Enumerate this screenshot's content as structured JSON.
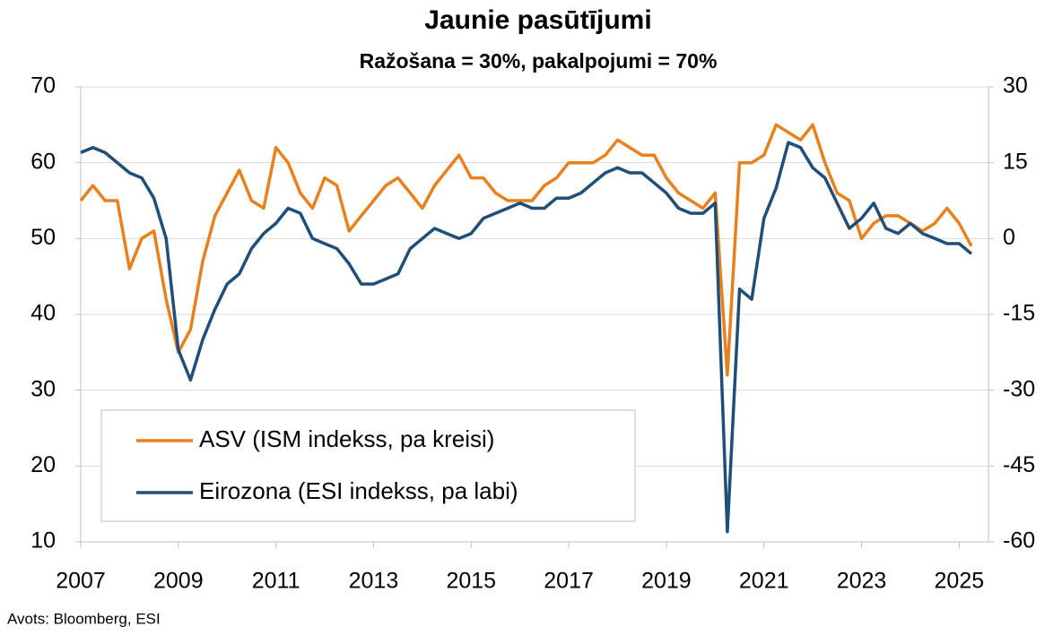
{
  "chart_data": {
    "type": "line",
    "title": "Jaunie pasūtījumi",
    "subtitle": "Ražošana = 30%, pakalpojumi = 70%",
    "source": "Avots: Bloomberg, ESI",
    "x": [
      2007,
      2007.25,
      2007.5,
      2007.75,
      2008,
      2008.25,
      2008.5,
      2008.75,
      2009,
      2009.25,
      2009.5,
      2009.75,
      2010,
      2010.25,
      2010.5,
      2010.75,
      2011,
      2011.25,
      2011.5,
      2011.75,
      2012,
      2012.25,
      2012.5,
      2012.75,
      2013,
      2013.25,
      2013.5,
      2013.75,
      2014,
      2014.25,
      2014.5,
      2014.75,
      2015,
      2015.25,
      2015.5,
      2015.75,
      2016,
      2016.25,
      2016.5,
      2016.75,
      2017,
      2017.25,
      2017.5,
      2017.75,
      2018,
      2018.25,
      2018.5,
      2018.75,
      2019,
      2019.25,
      2019.5,
      2019.75,
      2020,
      2020.25,
      2020.5,
      2020.75,
      2021,
      2021.25,
      2021.5,
      2021.75,
      2022,
      2022.25,
      2022.5,
      2022.75,
      2023,
      2023.25,
      2023.5,
      2023.75,
      2024,
      2024.25,
      2024.5,
      2024.75,
      2025,
      2025.25
    ],
    "series": [
      {
        "name": "ASV (ISM indekss, pa kreisi)",
        "color": "#e8801e",
        "axis": "y",
        "values": [
          55,
          57,
          55,
          55,
          46,
          50,
          51,
          42,
          35,
          38,
          47,
          53,
          56,
          59,
          55,
          54,
          62,
          60,
          56,
          54,
          58,
          57,
          51,
          53,
          55,
          57,
          58,
          56,
          54,
          57,
          59,
          61,
          58,
          58,
          56,
          55,
          55,
          55,
          57,
          58,
          60,
          60,
          60,
          61,
          63,
          62,
          61,
          61,
          58,
          56,
          55,
          54,
          56,
          32,
          60,
          60,
          61,
          65,
          64,
          63,
          65,
          60,
          56,
          55,
          50,
          52,
          53,
          53,
          52,
          51,
          52,
          54,
          52,
          49
        ]
      },
      {
        "name": "Eirozona (ESI indekss, pa labi)",
        "color": "#1f4e79",
        "axis": "y2",
        "values": [
          17,
          18,
          17,
          15,
          13,
          12,
          8,
          0,
          -22,
          -28,
          -20,
          -14,
          -9,
          -7,
          -2,
          1,
          3,
          6,
          5,
          0,
          -1,
          -2,
          -5,
          -9,
          -9,
          -8,
          -7,
          -2,
          0,
          2,
          1,
          0,
          1,
          4,
          5,
          6,
          7,
          6,
          6,
          8,
          8,
          9,
          11,
          13,
          14,
          13,
          13,
          11,
          9,
          6,
          5,
          5,
          7,
          -58,
          -10,
          -12,
          4,
          10,
          19,
          18,
          14,
          12,
          7,
          2,
          4,
          7,
          2,
          1,
          3,
          1,
          0,
          -1,
          -1,
          -3
        ]
      }
    ],
    "xlim": [
      2007,
      2025.6
    ],
    "xticks": [
      2007,
      2009,
      2011,
      2013,
      2015,
      2017,
      2019,
      2021,
      2023,
      2025
    ],
    "ylim": [
      10,
      70
    ],
    "yticks": [
      10,
      20,
      30,
      40,
      50,
      60,
      70
    ],
    "y2lim": [
      -60,
      30
    ],
    "y2ticks": [
      -60,
      -45,
      -30,
      -15,
      0,
      15,
      30
    ],
    "grid": true,
    "legend": "lower left"
  }
}
